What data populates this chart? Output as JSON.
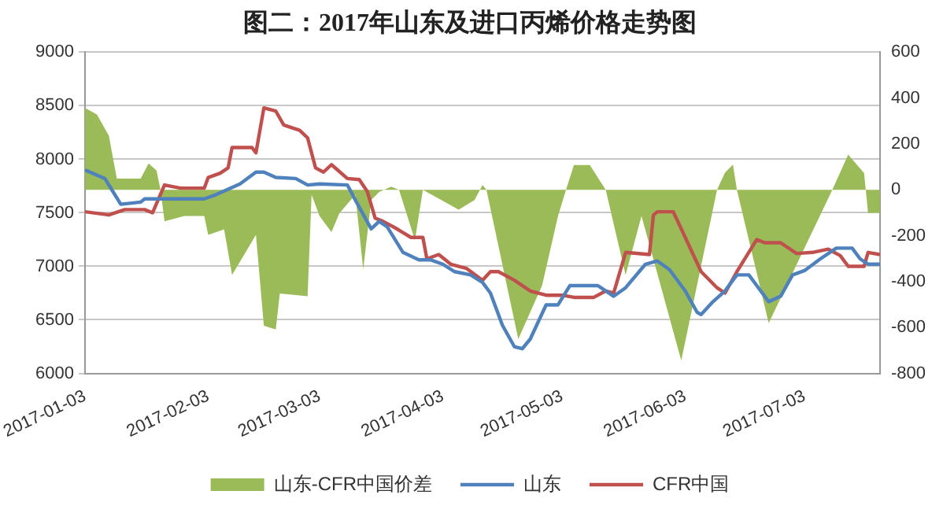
{
  "chart_data": {
    "type": "line",
    "title": "图二：2017年山东及进口丙烯价格走势图",
    "xlim": [
      "2017-01-03",
      "2017-07-22"
    ],
    "xticks": [
      "2017-01-03",
      "2017-02-03",
      "2017-03-03",
      "2017-04-03",
      "2017-05-03",
      "2017-06-03",
      "2017-07-03"
    ],
    "ylim": [
      6000,
      9000
    ],
    "yticks": [
      6000,
      6500,
      7000,
      7500,
      8000,
      8500,
      9000
    ],
    "y2lim": [
      -800,
      600
    ],
    "y2ticks": [
      -800,
      -600,
      -400,
      -200,
      0,
      200,
      400,
      600
    ],
    "grid": "y",
    "legend": "bottom",
    "series": [
      {
        "name": "山东-CFR中国价差",
        "type": "area",
        "axis": "y2",
        "color": "#9bbb59",
        "x": [
          "2017-01-03",
          "2017-01-06",
          "2017-01-09",
          "2017-01-11",
          "2017-01-17",
          "2017-01-19",
          "2017-01-21",
          "2017-01-22",
          "2017-01-23",
          "2017-01-28",
          "2017-02-02",
          "2017-02-03",
          "2017-02-07",
          "2017-02-09",
          "2017-02-15",
          "2017-02-17",
          "2017-02-20",
          "2017-02-21",
          "2017-02-28",
          "2017-03-01",
          "2017-03-03",
          "2017-03-06",
          "2017-03-08",
          "2017-03-12",
          "2017-03-14",
          "2017-03-16",
          "2017-03-18",
          "2017-03-21",
          "2017-03-23",
          "2017-03-27",
          "2017-03-29",
          "2017-04-07",
          "2017-04-11",
          "2017-04-13",
          "2017-04-14",
          "2017-04-22",
          "2017-04-28",
          "2017-05-02",
          "2017-05-04",
          "2017-05-06",
          "2017-05-10",
          "2017-05-14",
          "2017-05-19",
          "2017-05-23",
          "2017-06-02",
          "2017-06-11",
          "2017-06-13",
          "2017-06-15",
          "2017-06-16",
          "2017-06-24",
          "2017-07-03",
          "2017-07-10",
          "2017-07-14",
          "2017-07-18",
          "2017-07-19",
          "2017-07-20",
          "2017-07-22"
        ],
        "values": [
          357,
          329,
          236,
          49,
          49,
          115,
          84,
          0,
          -137,
          -114,
          -114,
          -196,
          -172,
          -371,
          -196,
          -592,
          -609,
          -452,
          -464,
          -21,
          -114,
          -184,
          -102,
          -21,
          -347,
          -44,
          -9,
          14,
          0,
          -219,
          0,
          -86,
          -44,
          21,
          0,
          -651,
          -417,
          -114,
          0,
          108,
          108,
          0,
          -371,
          -114,
          -744,
          0,
          75,
          110,
          0,
          -581,
          -254,
          0,
          154,
          73,
          -102,
          -100,
          -100
        ]
      },
      {
        "name": "山东",
        "color": "#4f81bd",
        "x": [
          "2017-01-03",
          "2017-01-08",
          "2017-01-10",
          "2017-01-12",
          "2017-01-17",
          "2017-01-18",
          "2017-02-02",
          "2017-02-05",
          "2017-02-08",
          "2017-02-11",
          "2017-02-15",
          "2017-02-17",
          "2017-02-20",
          "2017-02-25",
          "2017-02-28",
          "2017-03-03",
          "2017-03-10",
          "2017-03-12",
          "2017-03-16",
          "2017-03-18",
          "2017-03-20",
          "2017-03-24",
          "2017-03-28",
          "2017-03-31",
          "2017-04-03",
          "2017-04-06",
          "2017-04-10",
          "2017-04-13",
          "2017-04-15",
          "2017-04-18",
          "2017-04-21",
          "2017-04-23",
          "2017-04-25",
          "2017-04-29",
          "2017-05-02",
          "2017-05-05",
          "2017-05-12",
          "2017-05-16",
          "2017-05-19",
          "2017-05-24",
          "2017-05-27",
          "2017-05-30",
          "2017-06-03",
          "2017-06-06",
          "2017-06-07",
          "2017-06-10",
          "2017-06-13",
          "2017-06-16",
          "2017-06-19",
          "2017-06-21",
          "2017-06-24",
          "2017-06-27",
          "2017-06-30",
          "2017-07-03",
          "2017-07-07",
          "2017-07-11",
          "2017-07-15",
          "2017-07-17",
          "2017-07-19",
          "2017-07-22"
        ],
        "values": [
          7900,
          7820,
          7700,
          7580,
          7600,
          7630,
          7630,
          7670,
          7720,
          7770,
          7880,
          7880,
          7830,
          7820,
          7760,
          7770,
          7760,
          7620,
          7350,
          7420,
          7370,
          7130,
          7060,
          7060,
          7020,
          6950,
          6920,
          6850,
          6750,
          6450,
          6250,
          6230,
          6320,
          6640,
          6640,
          6820,
          6820,
          6720,
          6800,
          7020,
          7050,
          6970,
          6770,
          6570,
          6550,
          6670,
          6770,
          6920,
          6920,
          6820,
          6670,
          6720,
          6920,
          6960,
          7070,
          7170,
          7170,
          7070,
          7020,
          7020
        ]
      },
      {
        "name": "CFR中国",
        "color": "#c0504d",
        "x": [
          "2017-01-03",
          "2017-01-09",
          "2017-01-13",
          "2017-01-18",
          "2017-01-20",
          "2017-01-23",
          "2017-01-27",
          "2017-02-02",
          "2017-02-03",
          "2017-02-06",
          "2017-02-08",
          "2017-02-09",
          "2017-02-14",
          "2017-02-15",
          "2017-02-17",
          "2017-02-20",
          "2017-02-22",
          "2017-02-26",
          "2017-02-28",
          "2017-03-02",
          "2017-03-04",
          "2017-03-06",
          "2017-03-10",
          "2017-03-13",
          "2017-03-15",
          "2017-03-17",
          "2017-03-19",
          "2017-03-22",
          "2017-03-26",
          "2017-03-29",
          "2017-03-30",
          "2017-04-02",
          "2017-04-05",
          "2017-04-09",
          "2017-04-13",
          "2017-04-15",
          "2017-04-17",
          "2017-04-21",
          "2017-04-25",
          "2017-04-29",
          "2017-05-03",
          "2017-05-06",
          "2017-05-11",
          "2017-05-14",
          "2017-05-16",
          "2017-05-19",
          "2017-05-25",
          "2017-05-26",
          "2017-05-27",
          "2017-05-31",
          "2017-06-07",
          "2017-06-11",
          "2017-06-13",
          "2017-06-16",
          "2017-06-18",
          "2017-06-21",
          "2017-06-23",
          "2017-06-27",
          "2017-07-01",
          "2017-07-05",
          "2017-07-09",
          "2017-07-12",
          "2017-07-14",
          "2017-07-18",
          "2017-07-19",
          "2017-07-22"
        ],
        "values": [
          7510,
          7480,
          7530,
          7530,
          7500,
          7760,
          7730,
          7730,
          7830,
          7870,
          7920,
          8110,
          8110,
          8060,
          8480,
          8450,
          8320,
          8270,
          8200,
          7920,
          7880,
          7950,
          7820,
          7810,
          7700,
          7450,
          7420,
          7360,
          7270,
          7270,
          7070,
          7110,
          7020,
          6980,
          6870,
          6950,
          6950,
          6870,
          6770,
          6730,
          6730,
          6710,
          6710,
          6770,
          6750,
          7130,
          7110,
          7480,
          7510,
          7510,
          6950,
          6800,
          6750,
          6950,
          7070,
          7250,
          7220,
          7220,
          7120,
          7130,
          7160,
          7100,
          7000,
          7000,
          7130,
          7110
        ]
      }
    ]
  }
}
